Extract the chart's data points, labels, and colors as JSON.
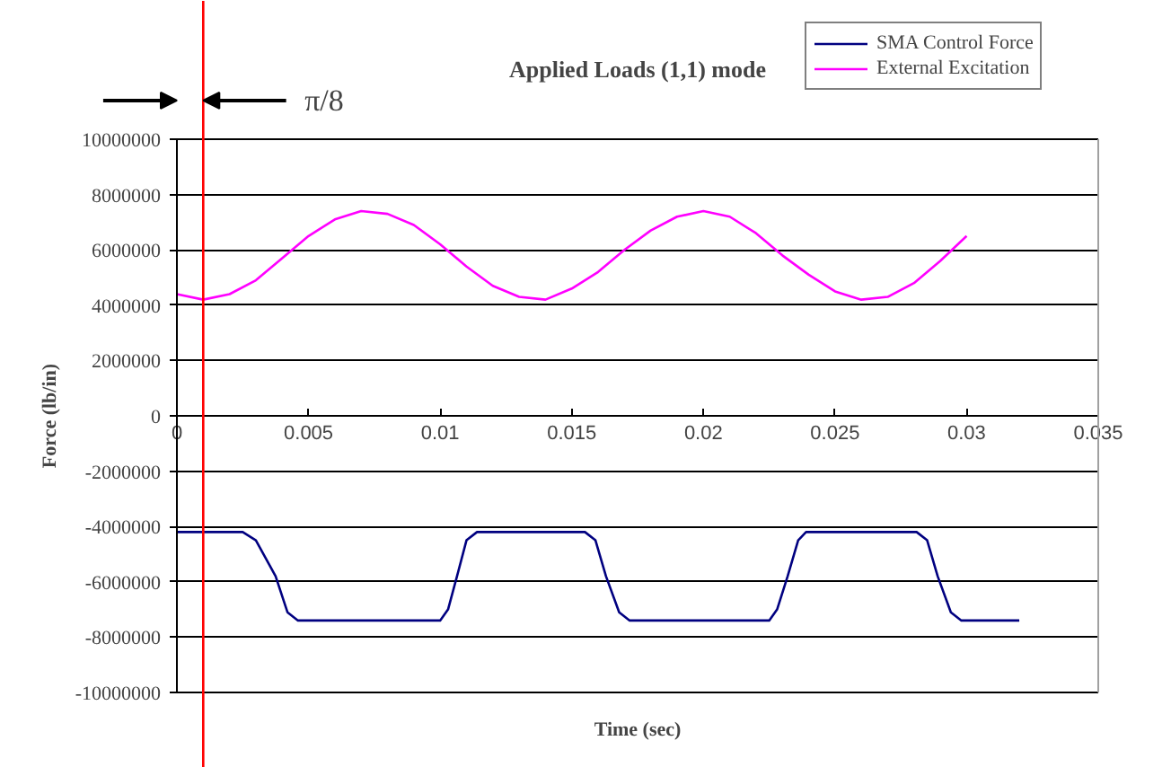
{
  "chart_data": {
    "type": "line",
    "title": "Applied Loads (1,1) mode",
    "xlabel": "Time (sec)",
    "ylabel": "Force (lb/in)",
    "xlim": [
      0,
      0.035
    ],
    "xticks": [
      0,
      0.005,
      0.01,
      0.015,
      0.02,
      0.025,
      0.03,
      0.035
    ],
    "ylim": [
      -10000000,
      10000000
    ],
    "yticks": [
      -10000000,
      -8000000,
      -6000000,
      -4000000,
      -2000000,
      0,
      2000000,
      4000000,
      6000000,
      8000000,
      10000000
    ],
    "grid": "y",
    "legend": "top right",
    "marker": "none",
    "line_style": "solid",
    "series": [
      {
        "name": "SMA Control Force",
        "color": "#000080",
        "x": [
          0,
          0.0025,
          0.003,
          0.00375,
          0.0042,
          0.0046,
          0.01,
          0.0103,
          0.01064,
          0.011,
          0.0114,
          0.0155,
          0.0159,
          0.0163,
          0.0168,
          0.0172,
          0.0225,
          0.0228,
          0.0232,
          0.0236,
          0.0239,
          0.0281,
          0.0285,
          0.0289,
          0.0294,
          0.0298,
          0.032
        ],
        "values": [
          -4200000,
          -4200000,
          -4500000,
          -5800000,
          -7100000,
          -7400000,
          -7400000,
          -7000000,
          -5800000,
          -4500000,
          -4200000,
          -4200000,
          -4500000,
          -5800000,
          -7100000,
          -7400000,
          -7400000,
          -7000000,
          -5800000,
          -4500000,
          -4200000,
          -4200000,
          -4500000,
          -5800000,
          -7100000,
          -7400000,
          -7400000
        ]
      },
      {
        "name": "External Excitation",
        "color": "#ff00ff",
        "x": [
          0,
          0.001,
          0.002,
          0.003,
          0.004,
          0.005,
          0.006,
          0.007,
          0.008,
          0.009,
          0.01,
          0.011,
          0.012,
          0.013,
          0.014,
          0.015,
          0.016,
          0.017,
          0.018,
          0.019,
          0.02,
          0.021,
          0.022,
          0.023,
          0.024,
          0.025,
          0.026,
          0.027,
          0.028,
          0.029,
          0.03
        ],
        "values": [
          4400000,
          4200000,
          4400000,
          4900000,
          5700000,
          6500000,
          7100000,
          7400000,
          7300000,
          6900000,
          6200000,
          5400000,
          4700000,
          4300000,
          4200000,
          4600000,
          5200000,
          6000000,
          6700000,
          7200000,
          7400000,
          7200000,
          6600000,
          5800000,
          5100000,
          4500000,
          4200000,
          4300000,
          4800000,
          5600000,
          6500000
        ]
      }
    ],
    "ref_lines": [
      {
        "axis": "x",
        "value": 0.001,
        "label": "π/8",
        "color": "#ff0000",
        "line_style": "solid"
      }
    ]
  }
}
